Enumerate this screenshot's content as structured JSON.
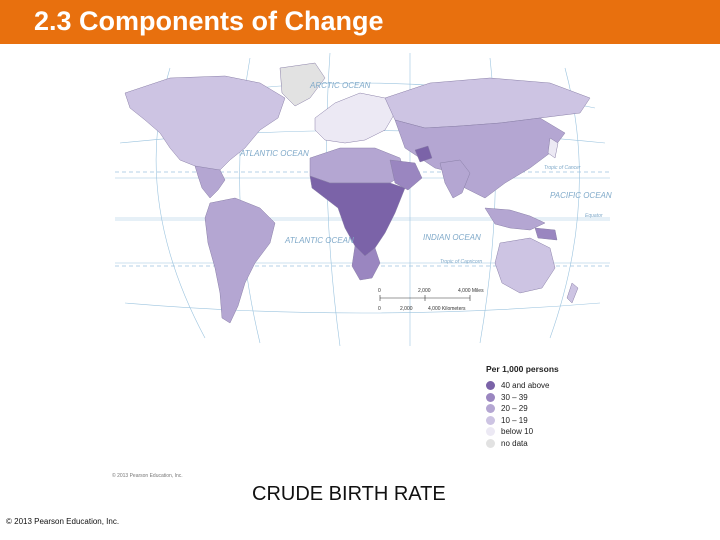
{
  "header": {
    "title": "2.3 Components of Change",
    "color": "#e8700e"
  },
  "map": {
    "oceans": [
      "ARCTIC OCEAN",
      "ATLANTIC OCEAN",
      "PACIFIC OCEAN",
      "INDIAN OCEAN",
      "ATLANTIC OCEAN"
    ],
    "lines": {
      "cancer": "Tropic of Cancer",
      "equator": "Equator",
      "capricorn": "Tropic of Capricorn"
    },
    "scale": {
      "miles": [
        "0",
        "2,000",
        "4,000 Miles"
      ],
      "km": [
        "0",
        "2,000",
        "4,000 Kilometers"
      ]
    },
    "colors": {
      "ocean": "#ffffff",
      "graticule": "#9cc4df"
    }
  },
  "legend": {
    "title": "Per 1,000 persons",
    "items": [
      {
        "label": "40 and above",
        "color": "#7b63a8"
      },
      {
        "label": "30 – 39",
        "color": "#9a86c0"
      },
      {
        "label": "20 – 29",
        "color": "#b4a6d2"
      },
      {
        "label": "10 – 19",
        "color": "#cdc4e3"
      },
      {
        "label": "below 10",
        "color": "#ece9f4"
      },
      {
        "label": "no data",
        "color": "#e2e2e2"
      }
    ]
  },
  "map_credit": "© 2013 Pearson Education, Inc.",
  "caption": "CRUDE BIRTH RATE",
  "footer": "© 2013 Pearson Education, Inc."
}
